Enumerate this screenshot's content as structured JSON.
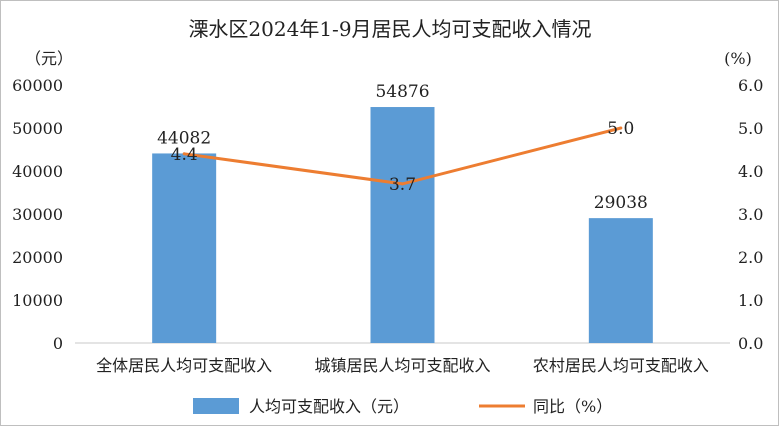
{
  "chart_data": {
    "type": "bar",
    "title": "溧水区2024年1-9月居民人均可支配收入情况",
    "left_unit": "（元）",
    "right_unit": "(%)",
    "categories": [
      "全体居民人均可支配收入",
      "城镇居民人均可支配收入",
      "农村居民人均可支配收入"
    ],
    "series": [
      {
        "name": "人均可支配收入（元）",
        "type": "bar",
        "axis": "left",
        "values": [
          44082,
          54876,
          29038
        ],
        "labels": [
          "44082",
          "54876",
          "29038"
        ],
        "color": "#5b9bd5"
      },
      {
        "name": "同比（%）",
        "type": "line",
        "axis": "right",
        "values": [
          4.4,
          3.7,
          5.0
        ],
        "labels": [
          "4.4",
          "3.7",
          "5.0"
        ],
        "color": "#ed7d31"
      }
    ],
    "left_axis": {
      "min": 0,
      "max": 60000,
      "step": 10000,
      "ticks": [
        "0",
        "10000",
        "20000",
        "30000",
        "40000",
        "50000",
        "60000"
      ]
    },
    "right_axis": {
      "min": 0,
      "max": 6,
      "step": 1,
      "ticks": [
        "0.0",
        "1.0",
        "2.0",
        "3.0",
        "4.0",
        "5.0",
        "6.0"
      ]
    },
    "grid": false,
    "legend": "bottom"
  }
}
